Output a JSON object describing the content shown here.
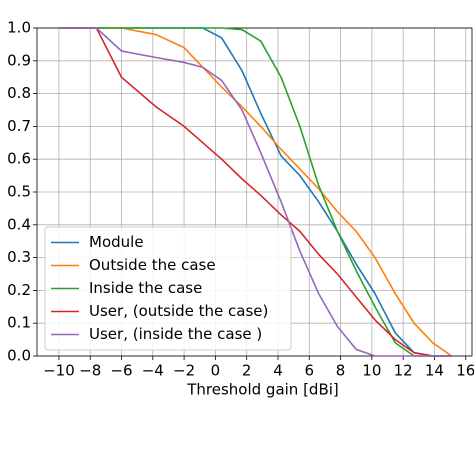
{
  "chart_data": {
    "type": "line",
    "xlabel": "Threshold gain [dBi]",
    "x": [
      -10,
      -7.6,
      -6,
      -3.8,
      -2,
      -0.8,
      0.4,
      1.7,
      2.9,
      4.2,
      5.4,
      6.6,
      7.8,
      9,
      10.2,
      11.5,
      12.7,
      13.9,
      15.1
    ],
    "series": [
      {
        "name": "Module",
        "color": "#1f77b4",
        "values": [
          1,
          1,
          1,
          1,
          1,
          1,
          0.97,
          0.87,
          0.74,
          0.61,
          0.55,
          0.47,
          0.38,
          0.28,
          0.19,
          0.07,
          0.01,
          0,
          0
        ]
      },
      {
        "name": "Outside the case",
        "color": "#ff7f0e",
        "values": [
          1,
          1,
          1,
          0.98,
          0.94,
          0.88,
          0.82,
          0.76,
          0.7,
          0.63,
          0.57,
          0.51,
          0.44,
          0.38,
          0.3,
          0.19,
          0.1,
          0.04,
          0
        ]
      },
      {
        "name": "Inside the case",
        "color": "#2ca02c",
        "values": [
          1,
          1,
          1,
          1,
          1,
          1,
          1,
          0.995,
          0.96,
          0.85,
          0.7,
          0.52,
          0.38,
          0.26,
          0.15,
          0.04,
          0,
          0,
          0
        ]
      },
      {
        "name": "User, (outside the case)",
        "color": "#d62728",
        "values": [
          1,
          1,
          0.85,
          0.76,
          0.7,
          0.65,
          0.6,
          0.54,
          0.49,
          0.43,
          0.38,
          0.31,
          0.25,
          0.18,
          0.11,
          0.05,
          0.01,
          0,
          0
        ]
      },
      {
        "name": "User, (inside the case )",
        "color": "#9467bd",
        "values": [
          1,
          1,
          0.93,
          0.91,
          0.895,
          0.88,
          0.84,
          0.75,
          0.62,
          0.47,
          0.32,
          0.19,
          0.09,
          0.02,
          0,
          0,
          0,
          0,
          0
        ]
      }
    ],
    "xlim": [
      -11.4,
      16.4
    ],
    "ylim": [
      0,
      1
    ],
    "xticks": [
      {
        "value": -10,
        "label": "−10"
      },
      {
        "value": -8,
        "label": "−8"
      },
      {
        "value": -6,
        "label": "−6"
      },
      {
        "value": -4,
        "label": "−4"
      },
      {
        "value": -2,
        "label": "−2"
      },
      0,
      2,
      4,
      6,
      8,
      10,
      12,
      14,
      16
    ],
    "yticks": [
      {
        "value": 0,
        "label": "0.0"
      },
      0.1,
      0.2,
      0.3,
      0.4,
      0.5,
      0.6,
      0.7,
      0.8,
      0.9,
      {
        "value": 1,
        "label": "1.0"
      }
    ],
    "grid": true,
    "legend": "lower left"
  }
}
